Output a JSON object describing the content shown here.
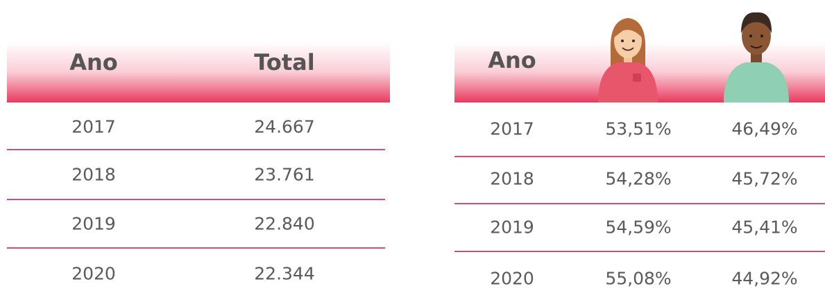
{
  "tables": [
    {
      "headers": [
        "Ano",
        "Total"
      ],
      "rows": [
        [
          "2017",
          "24.667"
        ],
        [
          "2018",
          "23.761"
        ],
        [
          "2019",
          "22.840"
        ],
        [
          "2020",
          "22.344"
        ]
      ]
    },
    {
      "headers": [
        "Ano"
      ],
      "rows": [
        [
          "2017",
          "53,51%",
          "46,49%"
        ],
        [
          "2018",
          "54,28%",
          "45,72%"
        ],
        [
          "2019",
          "54,59%",
          "45,41%"
        ],
        [
          "2020",
          "55,08%",
          "44,92%"
        ]
      ]
    }
  ]
}
